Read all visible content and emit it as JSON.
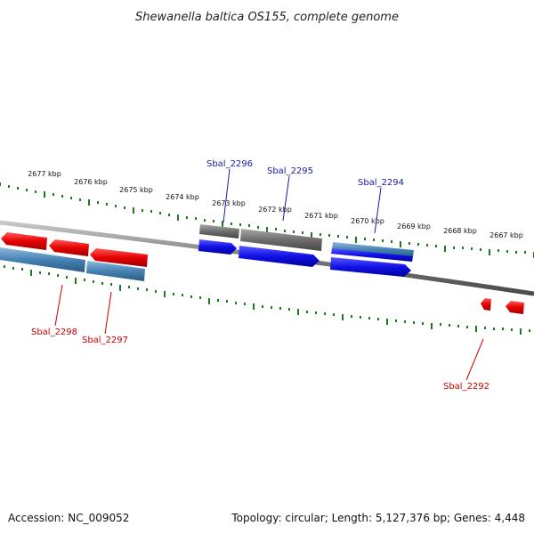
{
  "title": "Shewanella baltica OS155, complete genome",
  "footer": {
    "accession": "Accession: NC_009052",
    "summary": "Topology: circular; Length: 5,127,376 bp; Genes: 4,448"
  },
  "scale_labels": [
    "2677 kbp",
    "2676 kbp",
    "2675 kbp",
    "2674 kbp",
    "2673 kbp",
    "2672 kbp",
    "2671 kbp",
    "2670 kbp",
    "2669 kbp",
    "2668 kbp",
    "2667 kbp"
  ],
  "gene_labels": {
    "top": [
      "Sbal_2296",
      "Sbal_2295",
      "Sbal_2294"
    ],
    "bottom": [
      "Sbal_2298",
      "Sbal_2297",
      "Sbal_2292"
    ]
  },
  "colors": {
    "backbone": "#8a8a8a",
    "tick": "#1f7a1f",
    "label_blue": "#1a1aa6",
    "label_red": "#cc0000",
    "gene_red": "#e60000",
    "gene_blue": "#1010e6",
    "gene_steel": "#4682b4",
    "gene_gray": "#6e6e6e"
  }
}
